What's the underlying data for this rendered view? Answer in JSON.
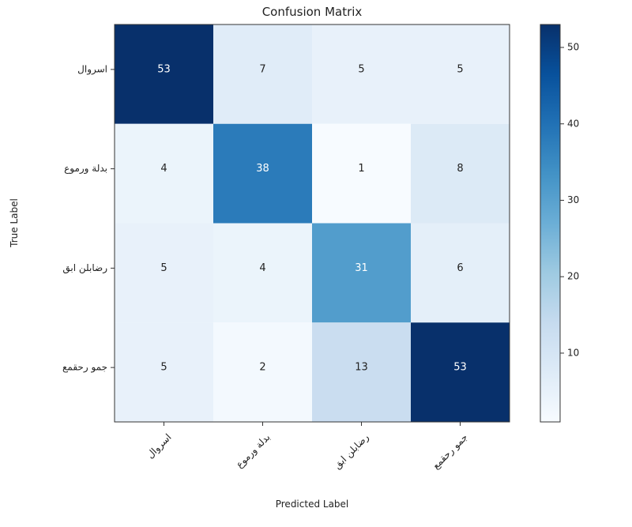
{
  "chart_data": {
    "type": "heatmap",
    "title": "Confusion Matrix",
    "xlabel": "Predicted Label",
    "ylabel": "True Label",
    "x_categories": [
      "اسروال",
      "بدلة ورموع",
      "رضابلن ابق",
      "جمو رحقمع"
    ],
    "y_categories": [
      "اسروال",
      "بدلة ورموع",
      "رضابلن ابق",
      "جمو رحقمع"
    ],
    "matrix": [
      [
        53,
        7,
        5,
        5
      ],
      [
        4,
        38,
        1,
        8
      ],
      [
        5,
        4,
        31,
        6
      ],
      [
        5,
        2,
        13,
        53
      ]
    ],
    "colorbar": {
      "colormap": "Blues",
      "range": [
        1,
        53
      ],
      "ticks": [
        10,
        20,
        30,
        40,
        50
      ]
    },
    "grid": false
  }
}
